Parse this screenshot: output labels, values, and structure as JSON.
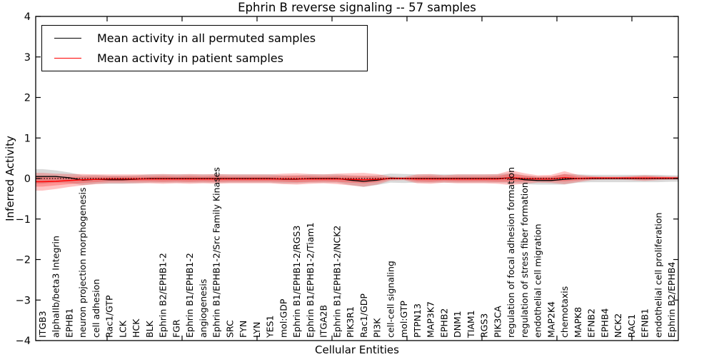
{
  "figure": {
    "title": "Ephrin B reverse signaling -- 57 samples",
    "xlabel": "Cellular Entities",
    "ylabel": "Inferred Activity"
  },
  "legend": {
    "items": [
      {
        "label": "Mean activity in all permuted samples",
        "color": "#000000"
      },
      {
        "label": "Mean activity in patient samples",
        "color": "#ff0000"
      }
    ]
  },
  "axes": {
    "y_ticks": [
      {
        "label": "4",
        "v": 4
      },
      {
        "label": "3",
        "v": 3
      },
      {
        "label": "2",
        "v": 2
      },
      {
        "label": "1",
        "v": 1
      },
      {
        "label": "0",
        "v": 0
      },
      {
        "label": "−1",
        "v": -1
      },
      {
        "label": "−2",
        "v": -2
      },
      {
        "label": "−3",
        "v": -3
      },
      {
        "label": "−4",
        "v": -4
      }
    ]
  },
  "chart_data": {
    "type": "line",
    "title": "Ephrin B reverse signaling -- 57 samples",
    "xlabel": "Cellular Entities",
    "ylabel": "Inferred Activity",
    "ylim": [
      -4,
      4
    ],
    "grid": false,
    "legend_position": "upper left",
    "categories": [
      "ITGB3",
      "alphaIIb/beta3 Integrin",
      "EPHB1",
      "neuron projection morphogenesis",
      "cell adhesion",
      "Rac1/GTP",
      "LCK",
      "HCK",
      "BLK",
      "Ephrin B2/EPHB1-2",
      "FGR",
      "Ephrin B1/EPHB1-2",
      "angiogenesis",
      "Ephrin B1/EPHB1-2/Src Family Kinases",
      "SRC",
      "FYN",
      "LYN",
      "YES1",
      "mol:GDP",
      "Ephrin B1/EPHB1-2/RGS3",
      "Ephrin B1/EPHB1-2/Tiam1",
      "ITGA2B",
      "Ephrin B1/EPHB1-2/NCK2",
      "PIK3R1",
      "Rac1/GDP",
      "PI3K",
      "cell-cell signaling",
      "mol:GTP",
      "PTPN13",
      "MAP3K7",
      "EPHB2",
      "DNM1",
      "TIAM1",
      "RGS3",
      "PIK3CA",
      "regulation of focal adhesion formation",
      "regulation of stress fiber formation",
      "endothelial cell migration",
      "MAP2K4",
      "chemotaxis",
      "MAPK8",
      "EFNB2",
      "EPHB4",
      "NCK2",
      "RAC1",
      "EFNB1",
      "endothelial cell proliferation",
      "Ephrin B2/EPHB4"
    ],
    "series": [
      {
        "name": "Mean activity in all permuted samples",
        "color": "#000000",
        "values": [
          0.05,
          0.05,
          0.02,
          -0.04,
          -0.02,
          -0.03,
          -0.03,
          -0.02,
          0,
          0,
          0,
          0,
          0,
          0,
          0,
          0,
          0,
          0,
          -0.02,
          -0.02,
          0,
          0,
          0,
          -0.04,
          -0.07,
          -0.04,
          0.01,
          0,
          0,
          0,
          0,
          0,
          0,
          0,
          0,
          0.02,
          -0.03,
          -0.05,
          -0.05,
          -0.02,
          0,
          0,
          0,
          0,
          0,
          0,
          0,
          0
        ]
      },
      {
        "name": "Mean activity in patient samples",
        "color": "#ff0000",
        "values": [
          -0.08,
          -0.07,
          -0.05,
          -0.03,
          -0.02,
          -0.01,
          -0.01,
          -0.01,
          -0.01,
          -0.01,
          -0.01,
          -0.01,
          -0.01,
          -0.01,
          -0.01,
          -0.01,
          -0.01,
          -0.01,
          -0.01,
          -0.01,
          -0.01,
          -0.01,
          -0.01,
          -0.02,
          -0.03,
          -0.02,
          0,
          0,
          -0.01,
          -0.01,
          -0.01,
          -0.01,
          -0.01,
          -0.01,
          -0.01,
          0.02,
          0,
          -0.01,
          -0.01,
          0.02,
          0,
          0.01,
          0.01,
          0.01,
          0.01,
          0.01,
          0.01,
          0.01
        ]
      }
    ],
    "bands": [
      {
        "name": "permuted-range",
        "center": "permuted",
        "color": "rgba(120,120,120,0.28)",
        "half_widths": [
          0.18,
          0.15,
          0.13,
          0.12,
          0.11,
          0.1,
          0.1,
          0.1,
          0.1,
          0.1,
          0.1,
          0.1,
          0.1,
          0.1,
          0.1,
          0.1,
          0.1,
          0.1,
          0.1,
          0.1,
          0.1,
          0.1,
          0.1,
          0.12,
          0.14,
          0.12,
          0.11,
          0.11,
          0.1,
          0.1,
          0.1,
          0.1,
          0.1,
          0.1,
          0.1,
          0.12,
          0.11,
          0.1,
          0.1,
          0.13,
          0.1,
          0.09,
          0.09,
          0.09,
          0.09,
          0.09,
          0.09,
          0.08
        ]
      },
      {
        "name": "patient-range-outer",
        "center": "patient",
        "color": "rgba(255,40,40,0.28)",
        "half_widths": [
          0.22,
          0.19,
          0.16,
          0.14,
          0.12,
          0.11,
          0.11,
          0.11,
          0.11,
          0.12,
          0.11,
          0.12,
          0.11,
          0.12,
          0.11,
          0.11,
          0.11,
          0.11,
          0.13,
          0.14,
          0.12,
          0.11,
          0.13,
          0.15,
          0.17,
          0.13,
          0.05,
          0.04,
          0.11,
          0.12,
          0.09,
          0.11,
          0.11,
          0.11,
          0.12,
          0.18,
          0.13,
          0.09,
          0.1,
          0.16,
          0.09,
          0.05,
          0.04,
          0.04,
          0.05,
          0.07,
          0.05,
          0.04
        ]
      },
      {
        "name": "patient-range-inner",
        "center": "patient",
        "color": "rgba(255,40,40,0.30)",
        "half_widths": [
          0.12,
          0.1,
          0.09,
          0.08,
          0.07,
          0.06,
          0.06,
          0.06,
          0.06,
          0.07,
          0.06,
          0.07,
          0.06,
          0.07,
          0.06,
          0.06,
          0.06,
          0.06,
          0.07,
          0.08,
          0.07,
          0.06,
          0.07,
          0.08,
          0.09,
          0.07,
          0.02,
          0.02,
          0.06,
          0.07,
          0.05,
          0.06,
          0.06,
          0.06,
          0.07,
          0.1,
          0.07,
          0.05,
          0.06,
          0.09,
          0.05,
          0.03,
          0.02,
          0.02,
          0.03,
          0.04,
          0.03,
          0.02
        ]
      }
    ],
    "zero_line": {
      "y": 0,
      "style": "dotted",
      "color": "#000000"
    }
  }
}
